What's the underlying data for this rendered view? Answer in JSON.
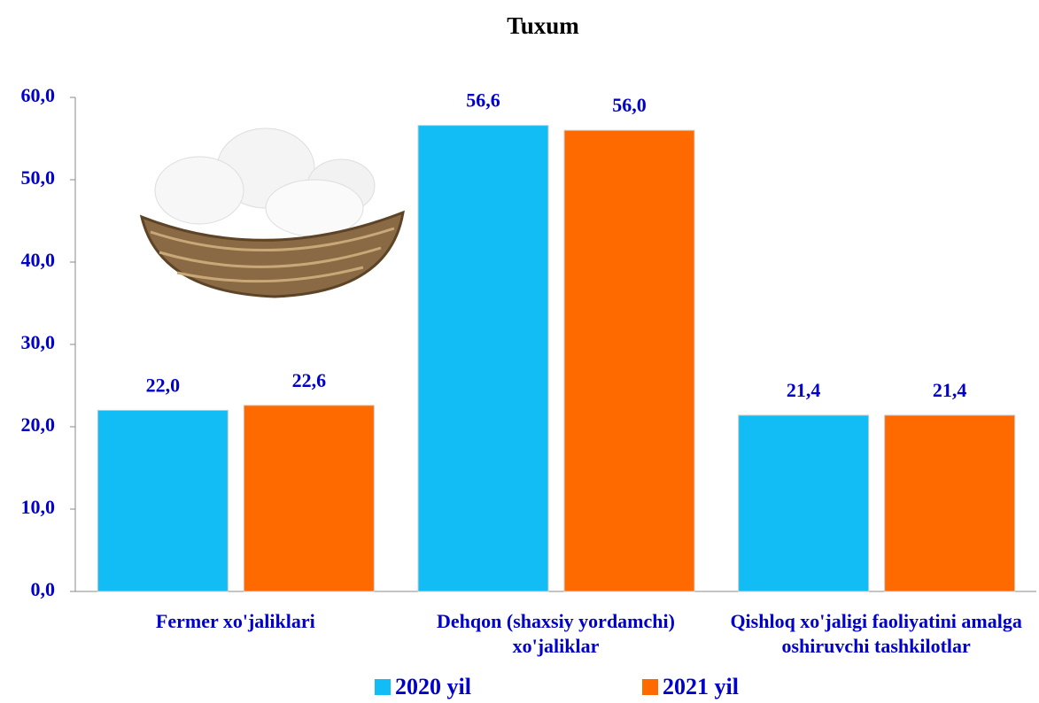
{
  "chart_data": {
    "type": "bar",
    "title": "Tuxum",
    "categories": [
      "Fermer xo'jaliklari",
      "Dehqon (shaxsiy yordamchi) xo'jaliklar",
      "Qishloq xo'jaligi faoliyatini amalga oshiruvchi tashkilotlar"
    ],
    "series": [
      {
        "name": "2020 yil",
        "color": "#12bdf5",
        "values": [
          22.0,
          56.6,
          21.4
        ],
        "value_labels": [
          "22,0",
          "56,6",
          "21,4"
        ]
      },
      {
        "name": "2021 yil",
        "color": "#ff6a00",
        "values": [
          22.6,
          56.0,
          21.4
        ],
        "value_labels": [
          "22,6",
          "56,0",
          "21,4"
        ]
      }
    ],
    "ylim": [
      0,
      60
    ],
    "yticks": [
      {
        "value": 0,
        "label": "0,0"
      },
      {
        "value": 10,
        "label": "10,0"
      },
      {
        "value": 20,
        "label": "20,0"
      },
      {
        "value": 30,
        "label": "30,0"
      },
      {
        "value": 40,
        "label": "40,0"
      },
      {
        "value": 50,
        "label": "50,0"
      },
      {
        "value": 60,
        "label": "60,0"
      }
    ]
  }
}
